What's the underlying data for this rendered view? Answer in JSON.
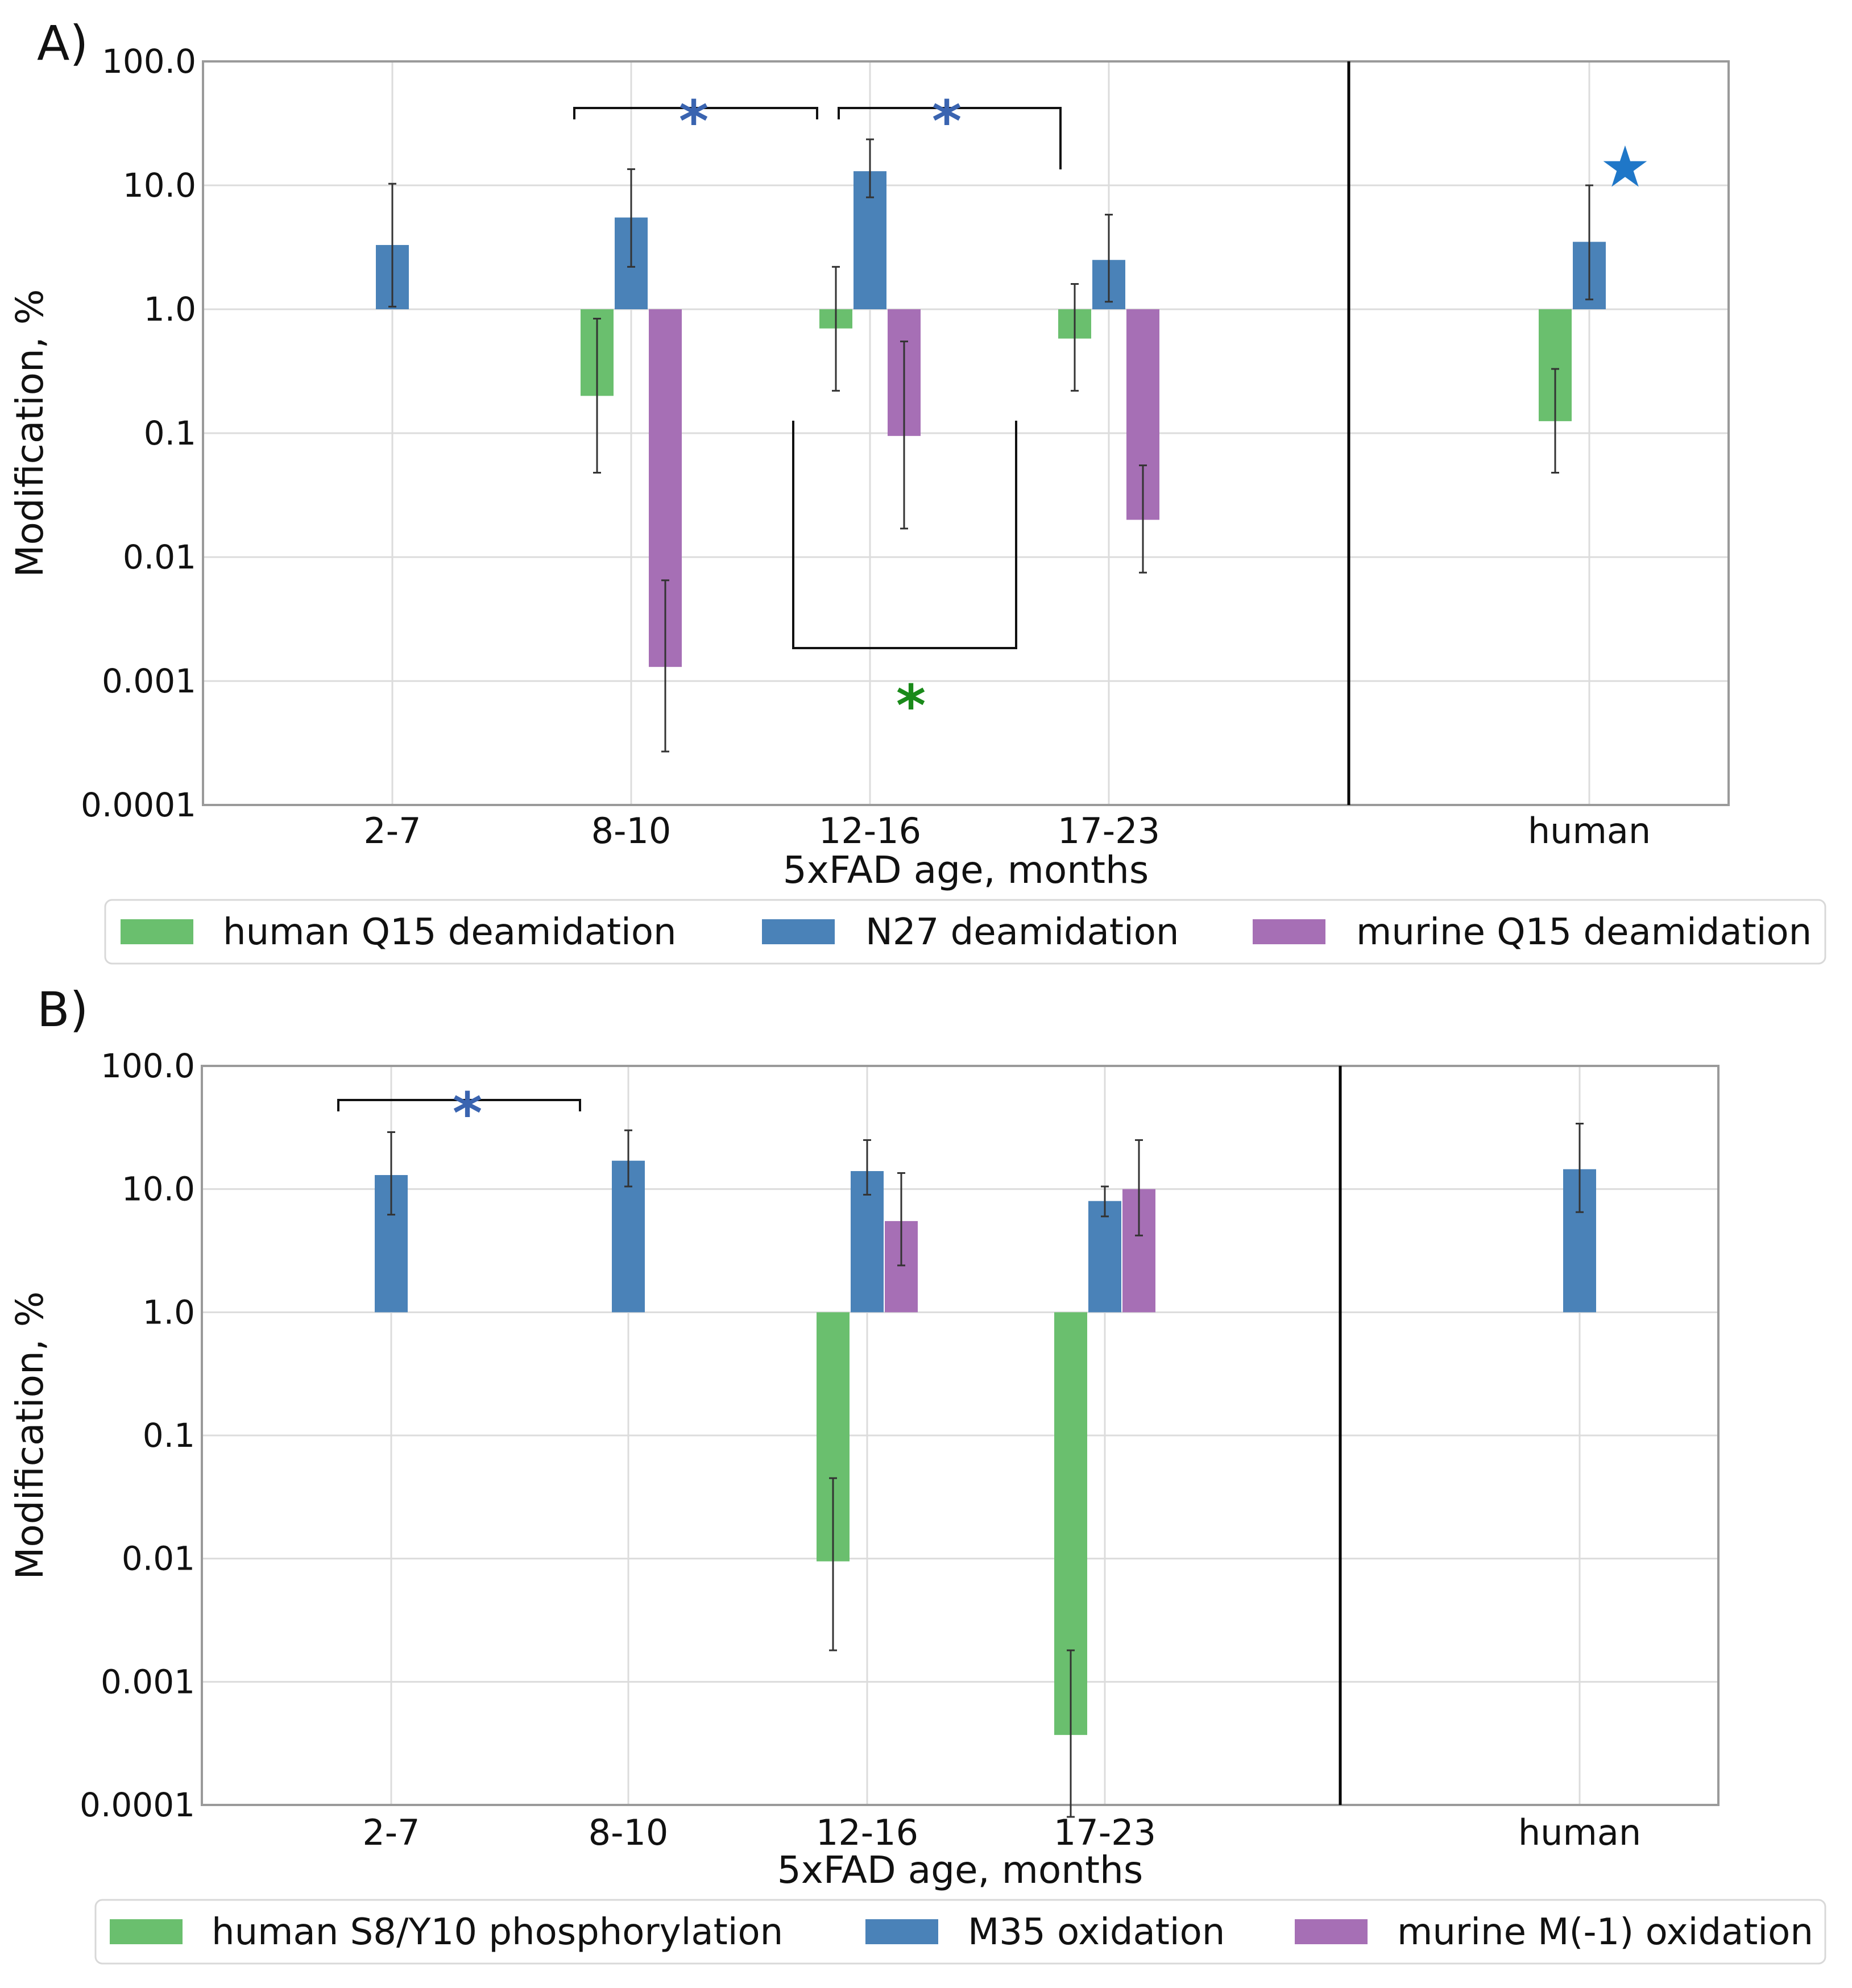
{
  "chart_data": [
    {
      "type": "bar",
      "panel_label": "A)",
      "xlabel": "5xFAD age, months",
      "ylabel": "Modification, %",
      "yscale": "log",
      "baseline": 1.0,
      "ylim": [
        0.0001,
        100.0
      ],
      "yticks": [
        "100.0",
        "10.0",
        "1.0",
        "0.1",
        "0.01",
        "0.001",
        "0.0001"
      ],
      "categories": [
        "2-7",
        "8-10",
        "12-16",
        "17-23",
        "human"
      ],
      "grid": true,
      "legend_position": "below",
      "series": [
        {
          "name": "human Q15 deamidation",
          "color": "#6abf6e",
          "values": [
            null,
            0.2,
            0.7,
            0.58,
            0.125
          ],
          "err_low": [
            null,
            0.048,
            0.22,
            0.22,
            0.048
          ],
          "err_high": [
            null,
            0.84,
            2.2,
            1.6,
            0.33
          ]
        },
        {
          "name": "N27 deamidation",
          "color": "#4a82b8",
          "values": [
            3.3,
            5.5,
            13.0,
            2.5,
            3.5
          ],
          "err_low": [
            1.05,
            2.2,
            8.0,
            1.15,
            1.2
          ],
          "err_high": [
            10.3,
            13.5,
            23.5,
            5.8,
            10.0
          ]
        },
        {
          "name": "murine Q15 deamidation",
          "color": "#a66fb5",
          "values": [
            null,
            0.0013,
            0.095,
            0.02,
            null
          ],
          "err_low": [
            null,
            0.00027,
            0.017,
            0.0075,
            null
          ],
          "err_high": [
            null,
            0.0065,
            0.55,
            0.055,
            null
          ]
        }
      ],
      "annotations": [
        {
          "text": "*",
          "color": "#3a64b0"
        },
        {
          "text": "*",
          "color": "#3a64b0"
        },
        {
          "text": "*",
          "color": "#1a8a1a"
        },
        {
          "text": "★",
          "color": "#1f77c8"
        }
      ]
    },
    {
      "type": "bar",
      "panel_label": "B)",
      "xlabel": "5xFAD age, months",
      "ylabel": "Modification, %",
      "yscale": "log",
      "baseline": 1.0,
      "ylim": [
        0.0001,
        100.0
      ],
      "yticks": [
        "100.0",
        "10.0",
        "1.0",
        "0.1",
        "0.01",
        "0.001",
        "0.0001"
      ],
      "categories": [
        "2-7",
        "8-10",
        "12-16",
        "17-23",
        "human"
      ],
      "grid": true,
      "legend_position": "below",
      "series": [
        {
          "name": "human S8/Y10 phosphorylation",
          "color": "#6abf6e",
          "values": [
            null,
            null,
            0.0095,
            0.00037,
            null
          ],
          "err_low": [
            null,
            null,
            0.0018,
            8e-05,
            null
          ],
          "err_high": [
            null,
            null,
            0.045,
            0.0018,
            null
          ]
        },
        {
          "name": "M35 oxidation",
          "color": "#4a82b8",
          "values": [
            13.0,
            17.0,
            14.0,
            8.0,
            14.5
          ],
          "err_low": [
            6.2,
            10.5,
            9.0,
            6.0,
            6.5
          ],
          "err_high": [
            29.0,
            30.0,
            25.0,
            10.5,
            34.0
          ]
        },
        {
          "name": "murine M(-1) oxidation",
          "color": "#a66fb5",
          "values": [
            null,
            null,
            5.5,
            10.0,
            null
          ],
          "err_low": [
            null,
            null,
            2.4,
            4.2,
            null
          ],
          "err_high": [
            null,
            null,
            13.5,
            25.0,
            null
          ]
        }
      ],
      "annotations": [
        {
          "text": "*",
          "color": "#3a64b0"
        }
      ]
    }
  ]
}
